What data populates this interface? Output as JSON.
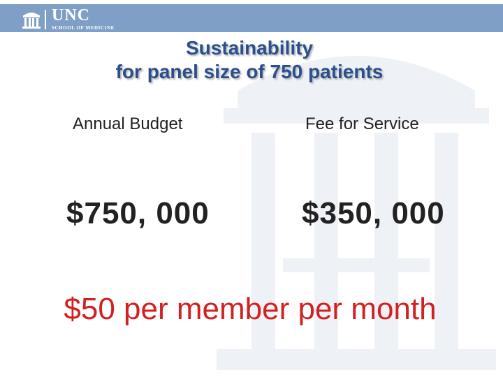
{
  "header": {
    "logo_main": "UNC",
    "logo_sub": "SCHOOL OF MEDICINE",
    "bar_color": "#7f9fc7",
    "logo_icon": "old-well-icon"
  },
  "slide": {
    "title_line1": "Sustainability",
    "title_line2": "for panel size of 750 patients",
    "left_heading": "Annual Budget",
    "right_heading": "Fee for Service",
    "left_amount": "$750, 000",
    "right_amount": "$350, 000",
    "rate_statement": "$50 per member per month",
    "title_color": "#2b4f8c",
    "rate_color": "#d32020"
  }
}
